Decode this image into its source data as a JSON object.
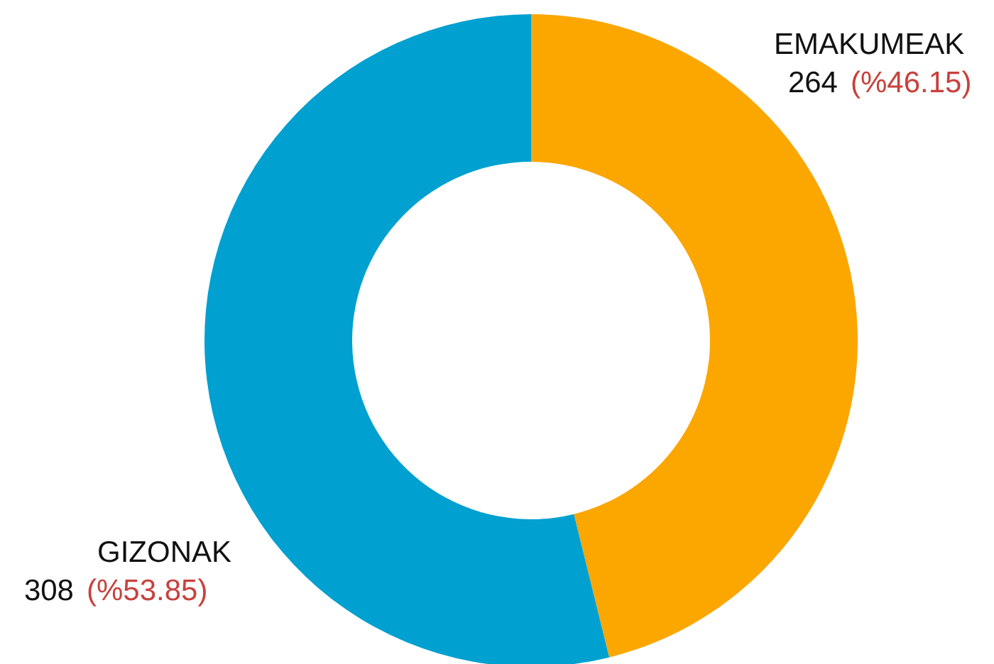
{
  "chart_data": {
    "type": "donut",
    "categories": [
      "EMAKUMEAK",
      "GIZONAK"
    ],
    "values": [
      264,
      308
    ],
    "colors": [
      "#fca600",
      "#00a0d0"
    ],
    "value_labels": [
      "264 (%46.15)",
      "308 (%53.85)"
    ]
  }
}
